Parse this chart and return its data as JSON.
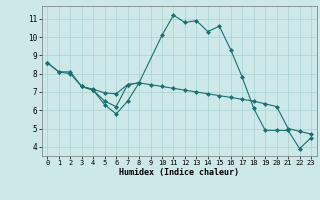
{
  "xlabel": "Humidex (Indice chaleur)",
  "ylabel": "",
  "background_color": "#cce8e8",
  "grid_color": "#b0d4d4",
  "line_color": "#1a7070",
  "xlim": [
    -0.5,
    23.5
  ],
  "ylim": [
    3.5,
    11.7
  ],
  "xticks": [
    0,
    1,
    2,
    3,
    4,
    5,
    6,
    7,
    8,
    9,
    10,
    11,
    12,
    13,
    14,
    15,
    16,
    17,
    18,
    19,
    20,
    21,
    22,
    23
  ],
  "yticks": [
    4,
    5,
    6,
    7,
    8,
    9,
    10,
    11
  ],
  "series": [
    {
      "x": [
        0,
        1,
        2,
        3,
        4,
        5,
        6,
        7,
        8,
        10,
        11,
        12,
        13,
        14,
        15,
        16,
        17,
        18,
        19,
        20,
        21,
        22,
        23
      ],
      "y": [
        8.6,
        8.1,
        8.1,
        7.3,
        7.1,
        6.3,
        5.8,
        6.5,
        7.5,
        10.1,
        11.2,
        10.8,
        10.9,
        10.3,
        10.6,
        9.3,
        7.8,
        6.1,
        4.9,
        4.9,
        4.9,
        3.9,
        4.5
      ]
    },
    {
      "x": [
        0,
        1,
        2,
        3,
        4,
        5,
        6,
        7,
        8,
        9,
        10,
        11,
        12,
        13,
        14,
        15,
        16,
        17,
        18,
        19,
        20,
        21,
        22,
        23
      ],
      "y": [
        8.6,
        8.1,
        8.0,
        7.3,
        7.15,
        6.95,
        6.9,
        7.4,
        7.5,
        7.4,
        7.3,
        7.2,
        7.1,
        7.0,
        6.9,
        6.8,
        6.7,
        6.6,
        6.5,
        6.35,
        6.2,
        5.0,
        4.85,
        4.7
      ]
    },
    {
      "x": [
        3,
        4,
        5,
        6,
        7,
        8
      ],
      "y": [
        7.3,
        7.1,
        6.5,
        6.2,
        7.4,
        7.5
      ]
    }
  ]
}
